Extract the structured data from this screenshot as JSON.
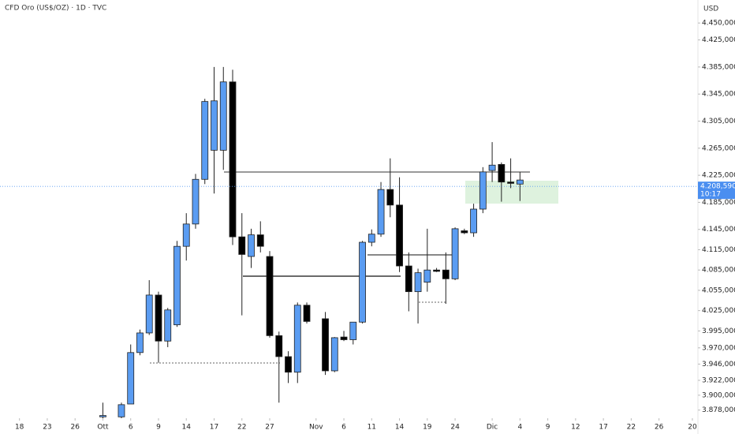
{
  "chart_data": {
    "type": "candlestick",
    "title": "CFD Oro (US$/OZ) · 1D · TVC",
    "currency": "USD",
    "up_color": "#5a9cf2",
    "down_color": "#000000",
    "x": [
      9,
      11,
      12,
      13,
      14,
      15,
      16,
      17,
      18,
      19,
      20,
      21,
      22,
      23,
      24,
      25,
      26,
      27,
      28,
      29,
      30,
      31,
      33,
      34,
      35,
      36,
      37,
      38,
      39,
      40,
      41,
      42,
      43,
      44,
      45,
      46,
      47,
      48,
      49,
      50,
      51,
      52,
      53,
      54
    ],
    "open": [
      3868,
      3868,
      3887,
      3963,
      3992,
      4048,
      3980,
      4004,
      4120,
      4153,
      4219,
      4262,
      4262,
      4363,
      4134,
      4105,
      4137,
      4105,
      3988,
      3957,
      3934,
      4033,
      4013,
      3936,
      3986,
      3982,
      4008,
      4126,
      4138,
      4204,
      4181,
      4091,
      4053,
      4067,
      4085,
      4085,
      4072,
      4143,
      4140,
      4175,
      4232,
      4241,
      4215,
      4212
    ],
    "high": [
      3889,
      3889,
      3975,
      3997,
      4070,
      4053,
      4029,
      4128,
      4169,
      4227,
      4338,
      4385,
      4385,
      4381,
      4169,
      4146,
      4157,
      4113,
      3994,
      3965,
      4037,
      4037,
      4023,
      3986,
      3995,
      4008,
      4128,
      4145,
      4215,
      4250,
      4222,
      4111,
      4087,
      4146,
      4088,
      4111,
      4148,
      4146,
      4183,
      4237,
      4274,
      4244,
      4250,
      4230
    ],
    "low": [
      3866,
      3866,
      3887,
      3959,
      3989,
      3948,
      3971,
      4001,
      4099,
      4146,
      4212,
      4198,
      4233,
      4122,
      4018,
      4088,
      4111,
      3985,
      3889,
      3918,
      3918,
      4006,
      3930,
      3934,
      3980,
      3975,
      4006,
      4120,
      4134,
      4163,
      4082,
      4024,
      4006,
      4053,
      4082,
      4035,
      4070,
      4138,
      4134,
      4169,
      4215,
      4186,
      4206,
      4187
    ],
    "close": [
      3870,
      3886,
      3963,
      3992,
      4048,
      3980,
      4026,
      4120,
      4153,
      4219,
      4334,
      4335,
      4363,
      4134,
      4108,
      4137,
      4120,
      3988,
      3957,
      3934,
      4033,
      4009,
      3936,
      3985,
      3982,
      4008,
      4126,
      4138,
      4204,
      4181,
      4091,
      4053,
      4081,
      4085,
      4083,
      4072,
      4146,
      4140,
      4175,
      4230,
      4240,
      4215,
      4213,
      4218
    ],
    "xlim": [
      -2.1,
      73.2
    ],
    "xticks": [
      {
        "value": 0,
        "label": "18"
      },
      {
        "value": 3,
        "label": "23"
      },
      {
        "value": 6,
        "label": "26"
      },
      {
        "value": 9,
        "label": "Ott"
      },
      {
        "value": 12,
        "label": "6"
      },
      {
        "value": 15,
        "label": "9"
      },
      {
        "value": 18,
        "label": "14"
      },
      {
        "value": 21,
        "label": "17"
      },
      {
        "value": 24,
        "label": "22"
      },
      {
        "value": 27,
        "label": "27"
      },
      {
        "value": 32,
        "label": "Nov"
      },
      {
        "value": 35,
        "label": "6"
      },
      {
        "value": 38,
        "label": "11"
      },
      {
        "value": 41,
        "label": "14"
      },
      {
        "value": 44,
        "label": "19"
      },
      {
        "value": 47,
        "label": "24"
      },
      {
        "value": 51,
        "label": "Dic"
      },
      {
        "value": 54,
        "label": "4"
      },
      {
        "value": 57,
        "label": "9"
      },
      {
        "value": 60,
        "label": "12"
      },
      {
        "value": 63,
        "label": "17"
      },
      {
        "value": 66,
        "label": "22"
      },
      {
        "value": 69,
        "label": "26"
      },
      {
        "value": 72.6,
        "label": "20"
      }
    ],
    "ylim": [
      3866,
      4484
    ],
    "yticks": [
      {
        "value": 4450,
        "label": "4.450,000"
      },
      {
        "value": 4425,
        "label": "4.425,000"
      },
      {
        "value": 4385,
        "label": "4.385,000"
      },
      {
        "value": 4345,
        "label": "4.345,000"
      },
      {
        "value": 4305,
        "label": "4.305,000"
      },
      {
        "value": 4265,
        "label": "4.265,000"
      },
      {
        "value": 4225,
        "label": "4.225,000"
      },
      {
        "value": 4185,
        "label": "4.185,000"
      },
      {
        "value": 4145,
        "label": "4.145,000"
      },
      {
        "value": 4115,
        "label": "4.115,000"
      },
      {
        "value": 4085,
        "label": "4.085,000"
      },
      {
        "value": 4055,
        "label": "4.055,000"
      },
      {
        "value": 4025,
        "label": "4.025,000"
      },
      {
        "value": 3995,
        "label": "3.995,000"
      },
      {
        "value": 3970,
        "label": "3.970,000"
      },
      {
        "value": 3946,
        "label": "3.946,000"
      },
      {
        "value": 3922,
        "label": "3.922,000"
      },
      {
        "value": 3900,
        "label": "3.900,000"
      },
      {
        "value": 3878,
        "label": "3.878,000"
      }
    ],
    "last_price": {
      "value": 4208.59,
      "label": "4.208,590"
    },
    "countdown": "10:17"
  }
}
